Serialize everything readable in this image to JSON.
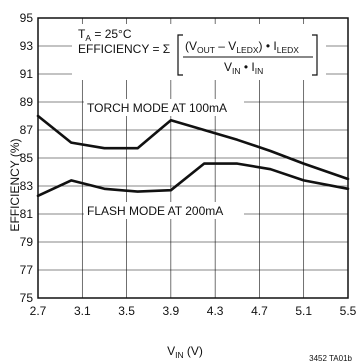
{
  "chart_data": {
    "type": "line",
    "title": "",
    "xlabel": "VIN (V)",
    "xlabel_main": "V",
    "xlabel_sub": "IN",
    "xlabel_unit": " (V)",
    "ylabel": "EFFICIENCY (%)",
    "xlim": [
      2.7,
      5.5
    ],
    "ylim": [
      75,
      95
    ],
    "xticks": [
      2.7,
      3.1,
      3.5,
      3.9,
      4.3,
      4.7,
      5.1,
      5.5
    ],
    "yticks": [
      75,
      77,
      79,
      81,
      83,
      85,
      87,
      89,
      91,
      93,
      95
    ],
    "grid": true,
    "series": [
      {
        "name": "TORCH MODE AT 100mA",
        "x": [
          2.7,
          3.0,
          3.3,
          3.6,
          3.9,
          4.2,
          4.5,
          4.8,
          5.1,
          5.5
        ],
        "y": [
          88.0,
          86.1,
          85.7,
          85.7,
          87.7,
          87.0,
          86.3,
          85.5,
          84.6,
          83.5
        ]
      },
      {
        "name": "FLASH MODE AT 200mA",
        "x": [
          2.7,
          3.0,
          3.3,
          3.6,
          3.9,
          4.2,
          4.5,
          4.8,
          5.1,
          5.5
        ],
        "y": [
          82.3,
          83.4,
          82.8,
          82.6,
          82.7,
          84.6,
          84.6,
          84.2,
          83.4,
          82.8
        ]
      }
    ],
    "annotation": {
      "ta_main": "T",
      "ta_sub": "A",
      "ta_rest": " = 25°C",
      "eff_label": "EFFICIENCY = Σ",
      "num_a": "(V",
      "num_b": "OUT",
      "num_c": " – V",
      "num_d": "LEDX",
      "num_e": ") • I",
      "num_f": "LEDX",
      "den_a": "V",
      "den_b": "IN",
      "den_c": " • I",
      "den_d": "IN"
    },
    "footnote": "3452 TA01b"
  }
}
